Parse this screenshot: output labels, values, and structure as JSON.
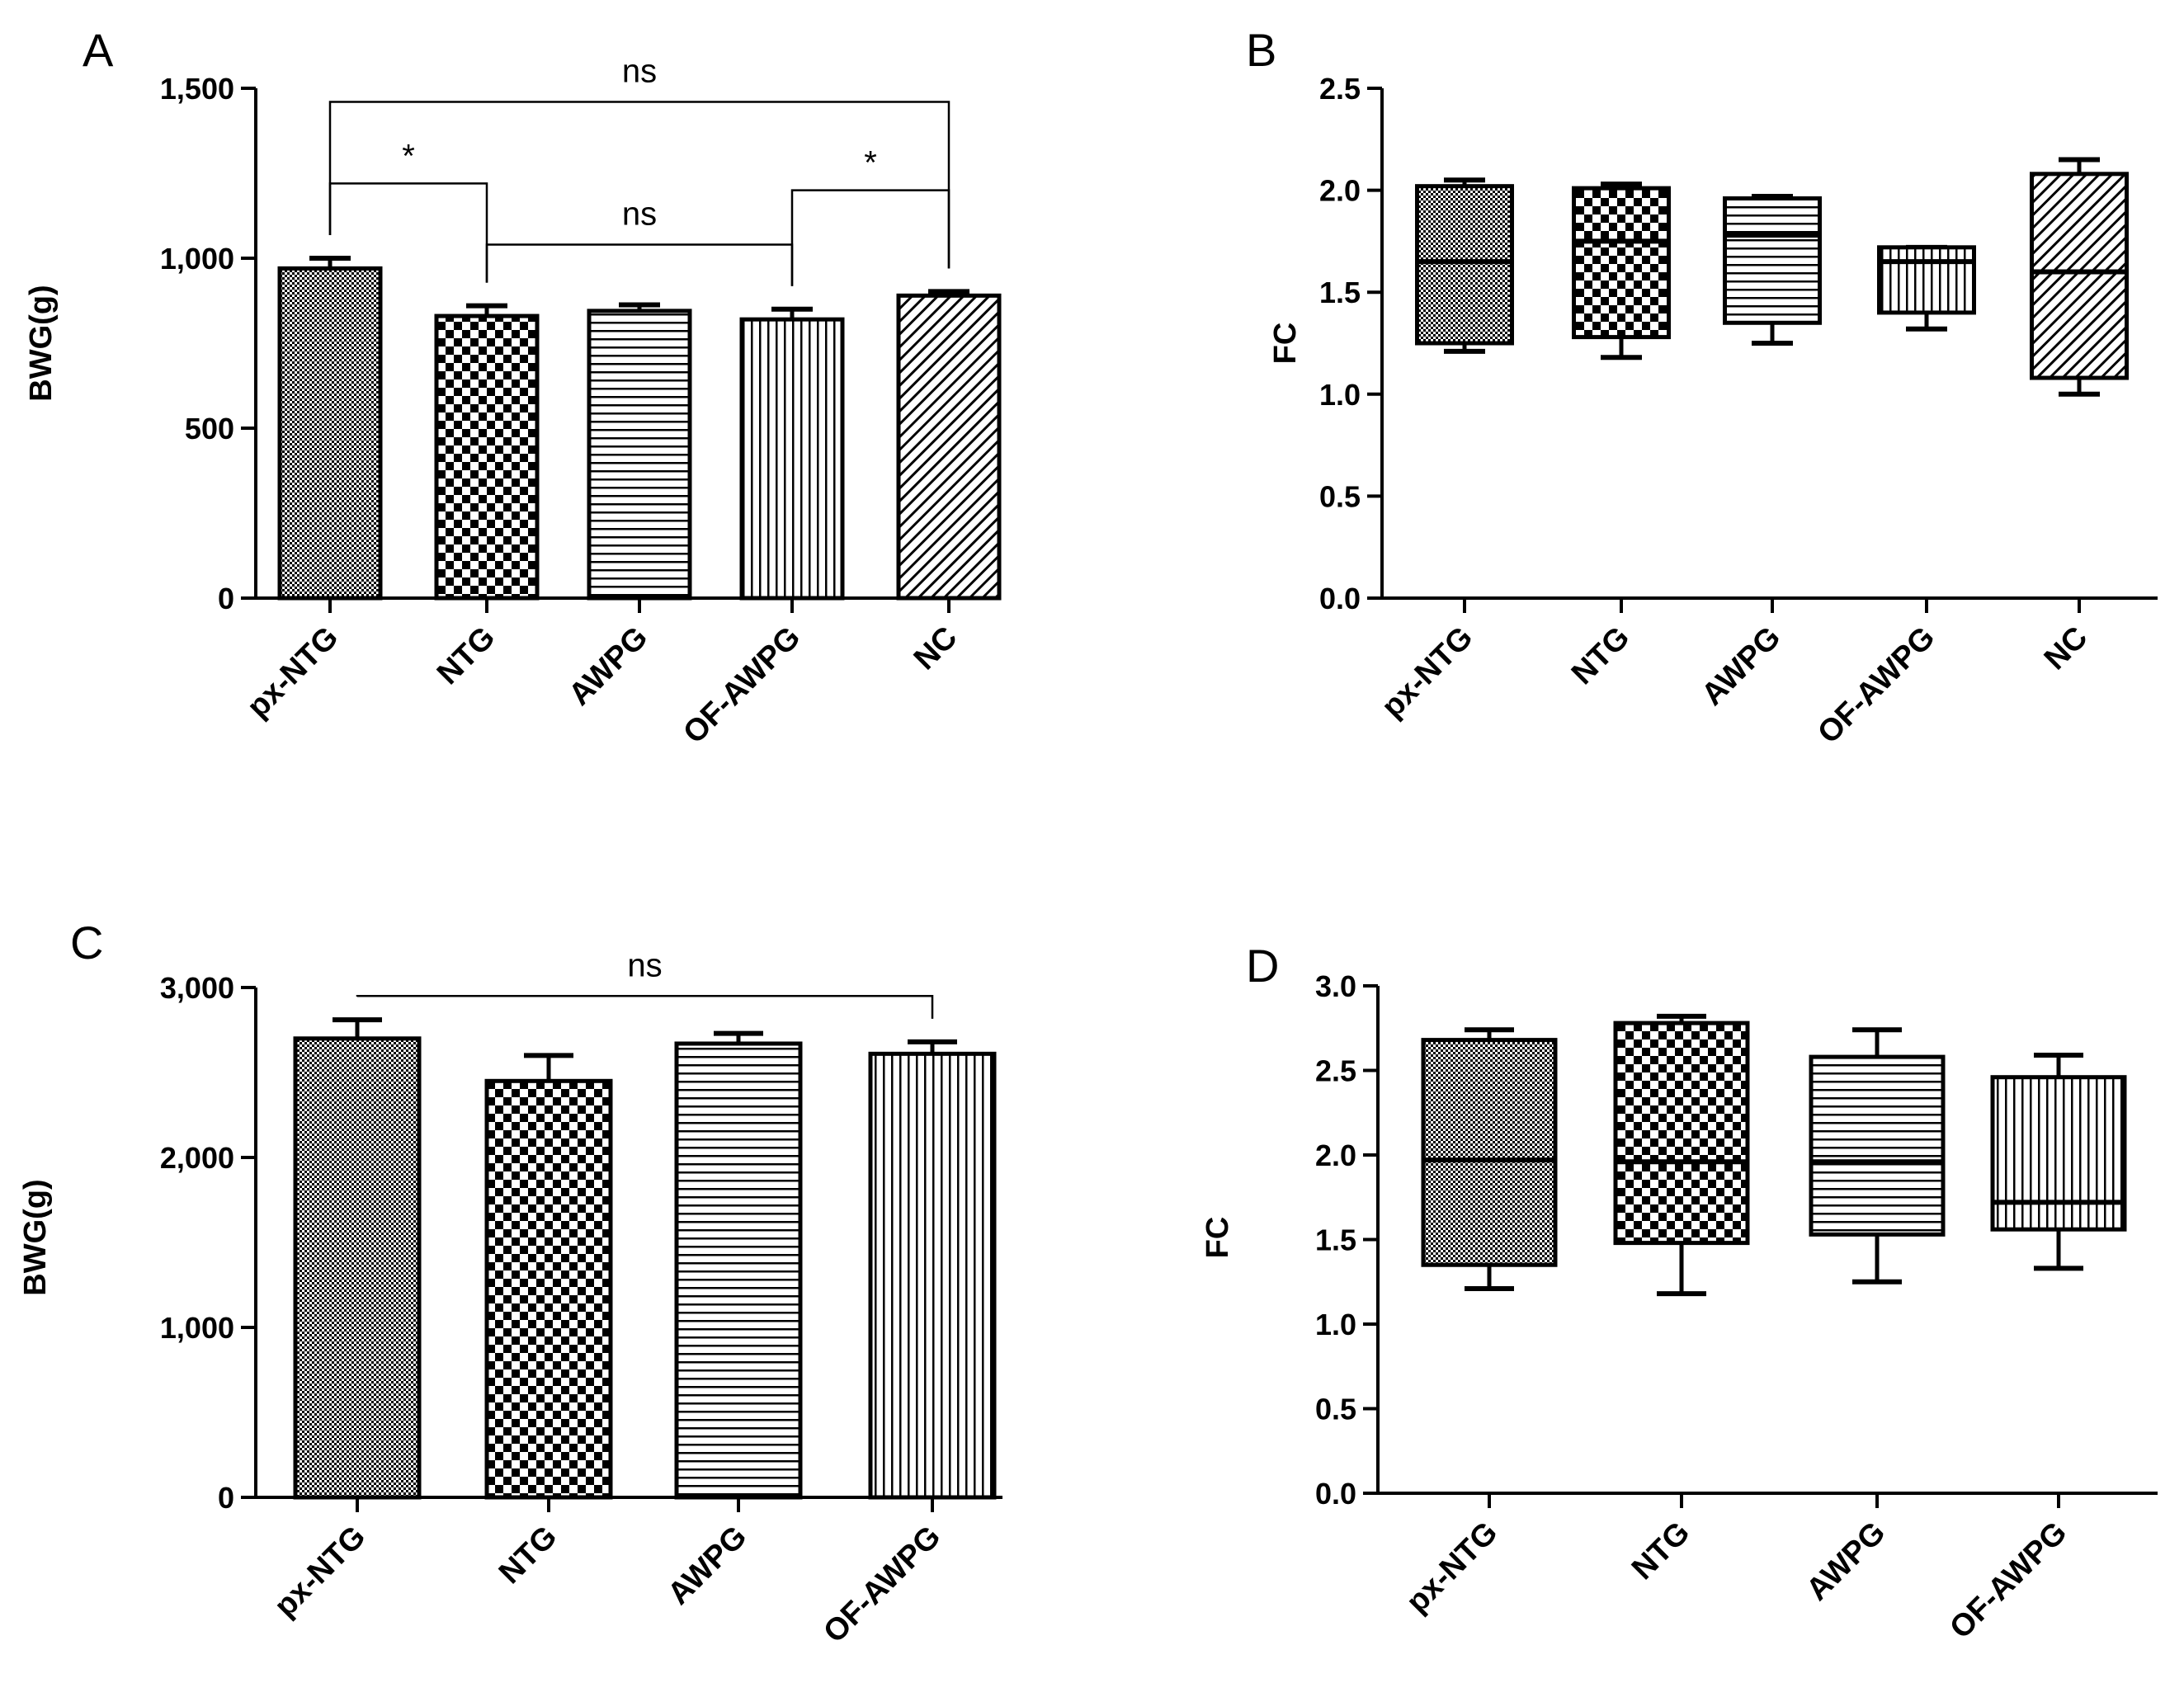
{
  "colors": {
    "ink": "#000000",
    "background": "#ffffff"
  },
  "chart_data": [
    {
      "id": "A",
      "type": "bar",
      "panel_label": "A",
      "ylabel": "BWG(g)",
      "xlabel": "",
      "categories": [
        "px-NTG",
        "NTG",
        "AWPG",
        "OF-AWPG",
        "NC"
      ],
      "values": [
        970,
        830,
        845,
        820,
        890
      ],
      "errors": [
        30,
        30,
        18,
        30,
        12
      ],
      "patterns": [
        "fine-grid",
        "checker",
        "hstripes",
        "vstripes",
        "diag"
      ],
      "ylim": [
        0,
        1500
      ],
      "yticks": [
        0,
        500,
        1000,
        1500
      ],
      "ytick_labels": [
        "0",
        "500",
        "1,000",
        "1,500"
      ],
      "grid": false,
      "annotations": [
        {
          "from": 0,
          "to": 1,
          "level": 1220,
          "label": "*"
        },
        {
          "from": 1,
          "to": 3,
          "level": 1040,
          "label": "ns"
        },
        {
          "from": 3,
          "to": 4,
          "level": 1200,
          "label": "*"
        },
        {
          "from": 0,
          "to": 4,
          "level": 1460,
          "label": "ns"
        }
      ]
    },
    {
      "id": "B",
      "type": "box",
      "panel_label": "B",
      "ylabel": "FC",
      "xlabel": "",
      "categories": [
        "px-NTG",
        "NTG",
        "AWPG",
        "OF-AWPG",
        "NC"
      ],
      "boxes": [
        {
          "min": 1.21,
          "q1": 1.25,
          "median": 1.65,
          "q3": 2.02,
          "max": 2.05
        },
        {
          "min": 1.18,
          "q1": 1.28,
          "median": 1.75,
          "q3": 2.01,
          "max": 2.03
        },
        {
          "min": 1.25,
          "q1": 1.35,
          "median": 1.78,
          "q3": 1.96,
          "max": 1.97
        },
        {
          "min": 1.32,
          "q1": 1.4,
          "median": 1.65,
          "q3": 1.72,
          "max": 1.72
        },
        {
          "min": 1.0,
          "q1": 1.08,
          "median": 1.6,
          "q3": 2.08,
          "max": 2.15
        }
      ],
      "patterns": [
        "fine-grid",
        "checker",
        "hstripes",
        "vstripes",
        "diag"
      ],
      "ylim": [
        0,
        2.5
      ],
      "yticks": [
        0,
        0.5,
        1.0,
        1.5,
        2.0,
        2.5
      ],
      "ytick_labels": [
        "0.0",
        "0.5",
        "1.0",
        "1.5",
        "2.0",
        "2.5"
      ],
      "grid": false
    },
    {
      "id": "C",
      "type": "bar",
      "panel_label": "C",
      "ylabel": "BWG(g)",
      "xlabel": "",
      "categories": [
        "px-NTG",
        "NTG",
        "AWPG",
        "OF-AWPG"
      ],
      "values": [
        2700,
        2450,
        2670,
        2610
      ],
      "errors": [
        110,
        150,
        60,
        70
      ],
      "patterns": [
        "fine-grid",
        "checker",
        "hstripes",
        "vstripes"
      ],
      "ylim": [
        0,
        3000
      ],
      "yticks": [
        0,
        1000,
        2000,
        3000
      ],
      "ytick_labels": [
        "0",
        "1,000",
        "2,000",
        "3,000"
      ],
      "grid": false,
      "annotations": [
        {
          "from": 0,
          "to": 3,
          "level": 2950,
          "label": "ns"
        }
      ]
    },
    {
      "id": "D",
      "type": "box",
      "panel_label": "D",
      "ylabel": "FC",
      "xlabel": "",
      "categories": [
        "px-NTG",
        "NTG",
        "AWPG",
        "OF-AWPG"
      ],
      "boxes": [
        {
          "min": 1.21,
          "q1": 1.35,
          "median": 1.97,
          "q3": 2.68,
          "max": 2.74
        },
        {
          "min": 1.18,
          "q1": 1.48,
          "median": 1.96,
          "q3": 2.78,
          "max": 2.82
        },
        {
          "min": 1.25,
          "q1": 1.53,
          "median": 1.96,
          "q3": 2.58,
          "max": 2.74
        },
        {
          "min": 1.33,
          "q1": 1.56,
          "median": 1.72,
          "q3": 2.46,
          "max": 2.59
        }
      ],
      "patterns": [
        "fine-grid",
        "checker",
        "hstripes",
        "vstripes"
      ],
      "ylim": [
        0,
        3.0
      ],
      "yticks": [
        0,
        0.5,
        1.0,
        1.5,
        2.0,
        2.5,
        3.0
      ],
      "ytick_labels": [
        "0.0",
        "0.5",
        "1.0",
        "1.5",
        "2.0",
        "2.5",
        "3.0"
      ],
      "grid": false
    }
  ]
}
